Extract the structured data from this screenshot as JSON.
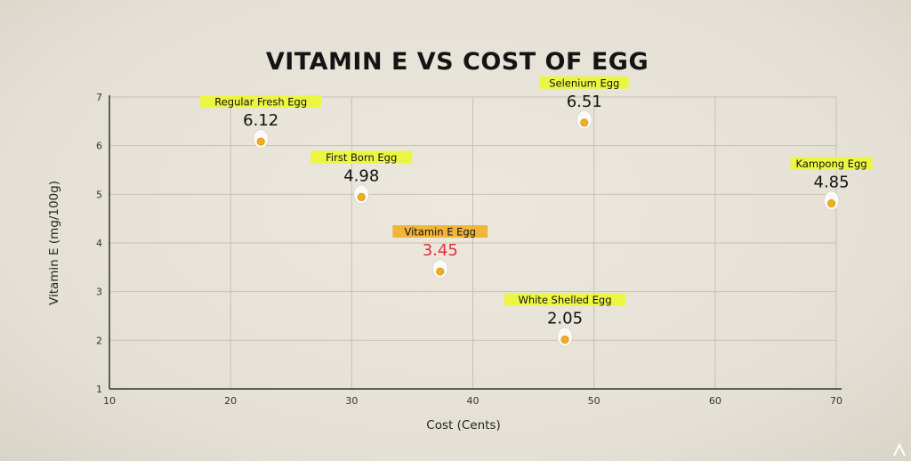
{
  "chart_data": {
    "type": "scatter",
    "title": "VITAMIN E VS COST OF EGG",
    "xlabel": "Cost (Cents)",
    "ylabel": "Vitamin E (mg/100g)",
    "xlim": [
      10,
      70
    ],
    "ylim": [
      1,
      7
    ],
    "xticks": [
      10,
      20,
      30,
      40,
      50,
      60,
      70
    ],
    "yticks": [
      1,
      2,
      3,
      4,
      5,
      6,
      7
    ],
    "grid": true,
    "points": [
      {
        "label": "Regular Fresh Egg",
        "x": 22.5,
        "y": 6.12,
        "value_text": "6.12",
        "tag_color": "#ecf542",
        "value_color": "#111111"
      },
      {
        "label": "First Born Egg",
        "x": 30.8,
        "y": 4.98,
        "value_text": "4.98",
        "tag_color": "#ecf542",
        "value_color": "#111111"
      },
      {
        "label": "Vitamin E Egg",
        "x": 37.3,
        "y": 3.45,
        "value_text": "3.45",
        "tag_color": "#f2b53a",
        "value_color": "#e0303b"
      },
      {
        "label": "Selenium Egg",
        "x": 49.2,
        "y": 6.51,
        "value_text": "6.51",
        "tag_color": "#ecf542",
        "value_color": "#111111"
      },
      {
        "label": "White Shelled Egg",
        "x": 47.6,
        "y": 2.05,
        "value_text": "2.05",
        "tag_color": "#ecf542",
        "value_color": "#111111"
      },
      {
        "label": "Kampong Egg",
        "x": 69.6,
        "y": 4.85,
        "value_text": "4.85",
        "tag_color": "#ecf542",
        "value_color": "#111111"
      }
    ],
    "marker_icon": "egg-icon"
  }
}
